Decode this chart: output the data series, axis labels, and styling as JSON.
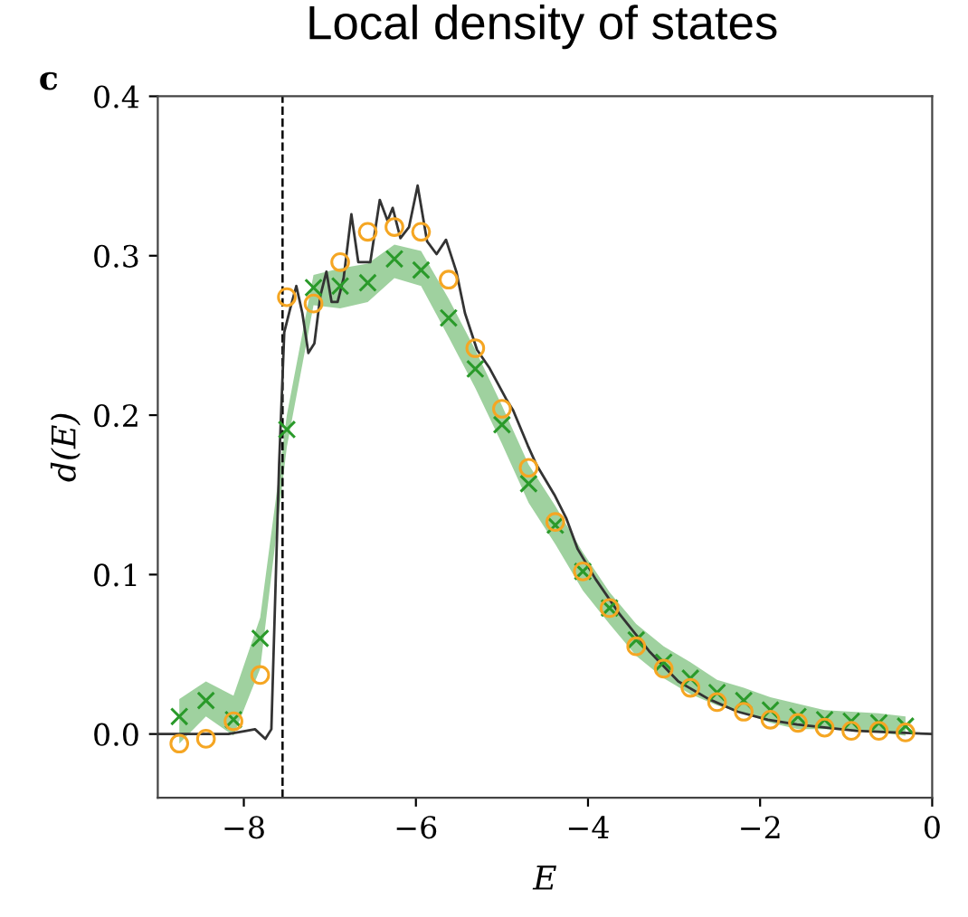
{
  "chart_data": {
    "type": "scatter",
    "title": "Local density of states",
    "xlabel": "E",
    "ylabel": "d(E)",
    "annotations": [
      "c"
    ],
    "xlim": [
      -9,
      0
    ],
    "ylim": [
      -0.04,
      0.4
    ],
    "xticks": [
      {
        "value": -8,
        "label": "−8"
      },
      {
        "value": -6,
        "label": "−6"
      },
      {
        "value": -4,
        "label": "−4"
      },
      {
        "value": -2,
        "label": "−2"
      },
      {
        "value": 0,
        "label": "0"
      }
    ],
    "yticks": [
      {
        "value": 0,
        "label": "0.0"
      },
      {
        "value": 0.1,
        "label": "0.1"
      },
      {
        "value": 0.2,
        "label": "0.2"
      },
      {
        "value": 0.3,
        "label": "0.3"
      },
      {
        "value": 0.4,
        "label": "0.4"
      }
    ],
    "grid": false,
    "ref_lines": [
      {
        "axis": "x",
        "value": -7.55,
        "color": "#000000",
        "line_style": "dashed"
      }
    ],
    "series": [
      {
        "type": "line",
        "color": "#333333",
        "marker": "none",
        "line_style": "solid",
        "x": [
          -9,
          -8.5,
          -8.18,
          -7.97,
          -7.87,
          -7.75,
          -7.68,
          -7.59,
          -7.53,
          -7.46,
          -7.39,
          -7.32,
          -7.25,
          -7.18,
          -7.11,
          -7.04,
          -6.98,
          -6.91,
          -6.84,
          -6.75,
          -6.67,
          -6.53,
          -6.42,
          -6.33,
          -6.27,
          -6.18,
          -6.08,
          -5.98,
          -5.87,
          -5.76,
          -5.65,
          -5.53,
          -5.43,
          -5.29,
          -5.15,
          -4.95,
          -4.87,
          -4.7,
          -4.6,
          -4.39,
          -4.25,
          -4.12,
          -3.91,
          -3.63,
          -3.29,
          -2.95,
          -2.6,
          -2.26,
          -1.91,
          -1.57,
          -1.23,
          -0.88,
          0
        ],
        "values": [
          0.0,
          0.0,
          0.0,
          0.002,
          0.003,
          -0.003,
          0.003,
          0.169,
          0.252,
          0.267,
          0.281,
          0.264,
          0.239,
          0.245,
          0.275,
          0.29,
          0.271,
          0.271,
          0.286,
          0.326,
          0.296,
          0.296,
          0.335,
          0.322,
          0.33,
          0.311,
          0.318,
          0.344,
          0.309,
          0.301,
          0.31,
          0.29,
          0.264,
          0.241,
          0.23,
          0.21,
          0.203,
          0.181,
          0.169,
          0.15,
          0.135,
          0.116,
          0.097,
          0.075,
          0.052,
          0.033,
          0.022,
          0.014,
          0.009,
          0.006,
          0.004,
          0.002,
          0.0
        ]
      },
      {
        "type": "scatter",
        "color": "#2a9a2a",
        "marker": "cross",
        "x": [
          -8.75,
          -8.44,
          -8.12,
          -7.81,
          -7.5,
          -7.19,
          -6.88,
          -6.56,
          -6.25,
          -5.94,
          -5.62,
          -5.31,
          -5.0,
          -4.69,
          -4.38,
          -4.06,
          -3.75,
          -3.44,
          -3.12,
          -2.81,
          -2.5,
          -2.19,
          -1.88,
          -1.56,
          -1.25,
          -0.94,
          -0.62,
          -0.31
        ],
        "values": [
          0.011,
          0.021,
          0.009,
          0.06,
          0.191,
          0.28,
          0.281,
          0.283,
          0.298,
          0.291,
          0.261,
          0.229,
          0.194,
          0.157,
          0.131,
          0.102,
          0.079,
          0.059,
          0.045,
          0.035,
          0.026,
          0.021,
          0.015,
          0.011,
          0.009,
          0.008,
          0.007,
          0.005
        ],
        "lower": [
          -0.006,
          0.011,
          -0.001,
          0.041,
          0.18,
          0.269,
          0.267,
          0.271,
          0.286,
          0.281,
          0.249,
          0.217,
          0.182,
          0.145,
          0.119,
          0.09,
          0.069,
          0.049,
          0.035,
          0.025,
          0.018,
          0.013,
          0.007,
          0.003,
          0.003,
          0.002,
          0.001,
          -0.001
        ],
        "upper": [
          0.022,
          0.033,
          0.024,
          0.073,
          0.2,
          0.288,
          0.292,
          0.295,
          0.307,
          0.303,
          0.273,
          0.241,
          0.206,
          0.169,
          0.143,
          0.114,
          0.089,
          0.069,
          0.055,
          0.045,
          0.034,
          0.029,
          0.023,
          0.019,
          0.015,
          0.014,
          0.013,
          0.011
        ]
      },
      {
        "color": "#f5a623",
        "marker": "circle",
        "x": [
          -8.75,
          -8.44,
          -8.12,
          -7.81,
          -7.5,
          -7.19,
          -6.88,
          -6.56,
          -6.25,
          -5.94,
          -5.62,
          -5.31,
          -5.0,
          -4.69,
          -4.38,
          -4.06,
          -3.75,
          -3.44,
          -3.12,
          -2.81,
          -2.5,
          -2.19,
          -1.88,
          -1.56,
          -1.25,
          -0.94,
          -0.62,
          -0.31
        ],
        "values": [
          -0.006,
          -0.003,
          0.008,
          0.037,
          0.274,
          0.27,
          0.296,
          0.315,
          0.318,
          0.315,
          0.285,
          0.242,
          0.204,
          0.167,
          0.133,
          0.102,
          0.079,
          0.055,
          0.041,
          0.029,
          0.02,
          0.014,
          0.009,
          0.007,
          0.004,
          0.002,
          0.002,
          0.001
        ]
      }
    ]
  }
}
